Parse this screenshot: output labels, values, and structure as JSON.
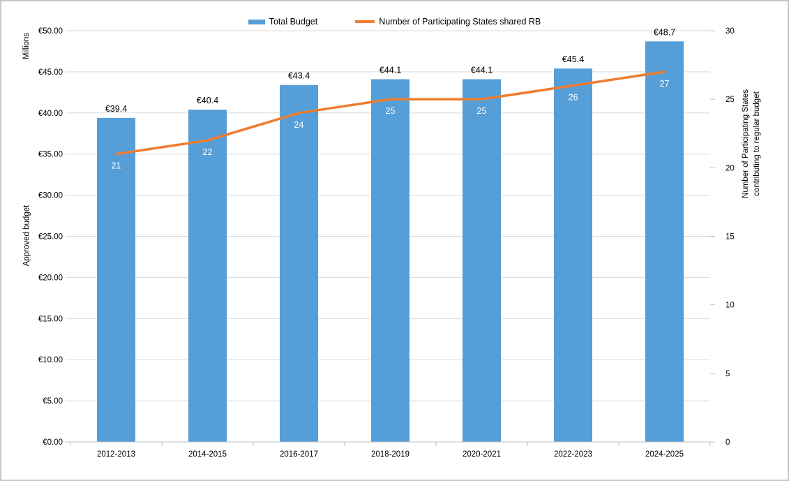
{
  "chart_data": {
    "type": "bar",
    "subtype": "combo-bar-line",
    "categories": [
      "2012-2013",
      "2014-2015",
      "2016-2017",
      "2018-2019",
      "2020-2021",
      "2022-2023",
      "2024-2025"
    ],
    "series": [
      {
        "name": "Total Budget",
        "type": "bar",
        "axis": "left",
        "color": "#559ED8",
        "values": [
          39.4,
          40.4,
          43.4,
          44.1,
          44.1,
          45.4,
          48.7
        ],
        "labels": [
          "€39.4",
          "€40.4",
          "€43.4",
          "€44.1",
          "€44.1",
          "€45.4",
          "€48.7"
        ]
      },
      {
        "name": "Number of Participating States shared RB",
        "type": "line",
        "axis": "right",
        "color": "#ED7D31",
        "values": [
          21,
          22,
          24,
          25,
          25,
          26,
          27
        ],
        "labels": [
          "21",
          "22",
          "24",
          "25",
          "25",
          "26",
          "27"
        ]
      }
    ],
    "left_axis": {
      "units_label": "Millions",
      "title": "Approved budget",
      "min": 0,
      "max": 50,
      "step": 5,
      "tick_labels": [
        "€0.00",
        "€5.00",
        "€10.00",
        "€15.00",
        "€20.00",
        "€25.00",
        "€30.00",
        "€35.00",
        "€40.00",
        "€45.00",
        "€50.00"
      ]
    },
    "right_axis": {
      "title_lines": [
        "Number of Participating States",
        "contributing to regular budget"
      ],
      "min": 0,
      "max": 30,
      "step": 5,
      "tick_labels": [
        "0",
        "5",
        "10",
        "15",
        "20",
        "25",
        "30"
      ]
    },
    "grid": true,
    "legend_position": "top",
    "colors": {
      "gridline": "#D9D9D9",
      "axis_line": "#BFBFBF",
      "bar_label_text": "#000000",
      "line_label_text": "#FFFFFF",
      "tick_text": "#000000"
    }
  }
}
